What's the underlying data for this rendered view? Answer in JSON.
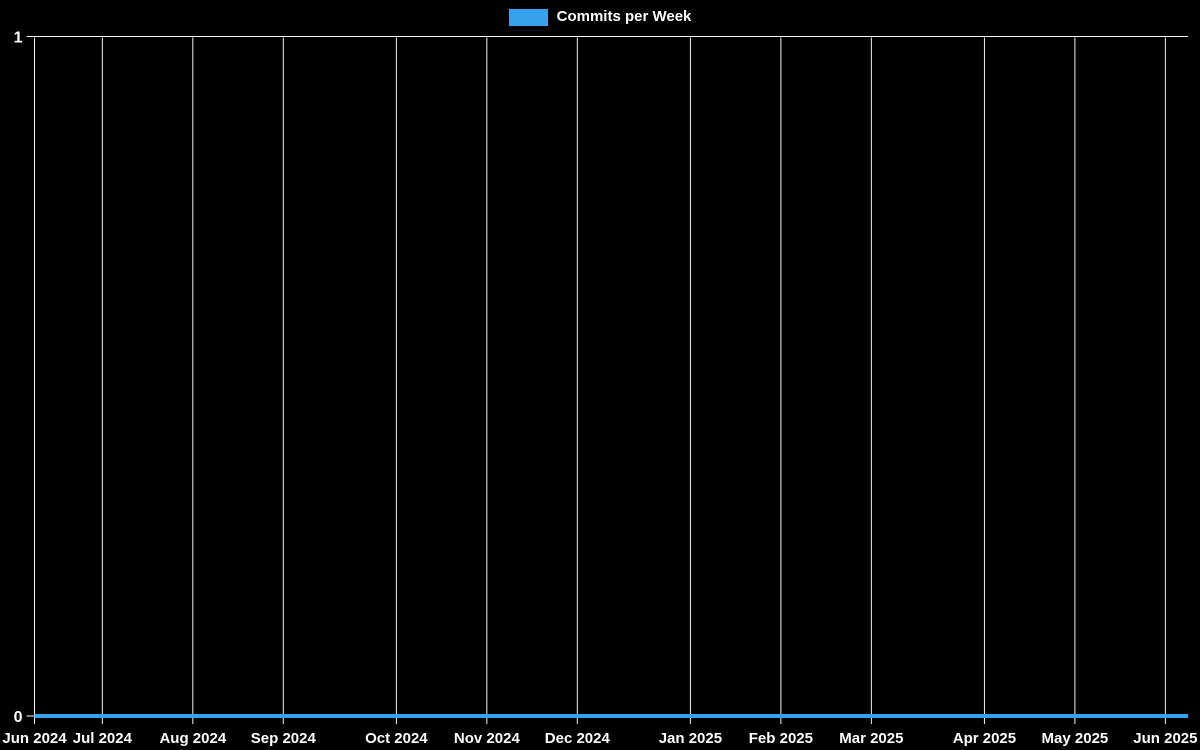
{
  "legend": {
    "label": "Commits per Week",
    "swatch_color": "#36a2eb"
  },
  "chart_data": {
    "type": "line",
    "title": "",
    "xlabel": "",
    "ylabel": "",
    "ylim": [
      0,
      1
    ],
    "grid": "vertical-gridlines-plus-top-line",
    "legend_position": "top-center",
    "x_interval": "weekly",
    "x_range": [
      "2024-06-16",
      "2025-06-08"
    ],
    "colors": {
      "background": "#000000",
      "grid": "#f2f2f2",
      "text": "#ffffff",
      "line": "#36a2eb"
    },
    "series": [
      {
        "name": "Commits per Week",
        "color": "#36a2eb",
        "values": [
          0,
          0,
          0,
          0,
          0,
          0,
          0,
          0,
          0,
          0,
          0,
          0,
          0,
          0,
          0,
          0,
          0,
          0,
          0,
          0,
          0,
          0,
          0,
          0,
          0,
          0,
          0,
          0,
          0,
          0,
          0,
          0,
          0,
          0,
          0,
          0,
          0,
          0,
          0,
          0,
          0,
          0,
          0,
          0,
          0,
          0,
          0,
          0,
          0,
          0,
          0,
          0
        ]
      }
    ],
    "x_ticks": [
      {
        "label": "Jun 2024",
        "week_index": 0
      },
      {
        "label": "Jul 2024",
        "week_index": 3
      },
      {
        "label": "Aug 2024",
        "week_index": 7
      },
      {
        "label": "Sep 2024",
        "week_index": 11
      },
      {
        "label": "Oct 2024",
        "week_index": 16
      },
      {
        "label": "Nov 2024",
        "week_index": 20
      },
      {
        "label": "Dec 2024",
        "week_index": 24
      },
      {
        "label": "Jan 2025",
        "week_index": 29
      },
      {
        "label": "Feb 2025",
        "week_index": 33
      },
      {
        "label": "Mar 2025",
        "week_index": 37
      },
      {
        "label": "Apr 2025",
        "week_index": 42
      },
      {
        "label": "May 2025",
        "week_index": 46
      },
      {
        "label": "Jun 2025",
        "week_index": 50
      }
    ],
    "y_ticks": [
      {
        "label": "0",
        "value": 0
      },
      {
        "label": "1",
        "value": 1
      }
    ]
  }
}
